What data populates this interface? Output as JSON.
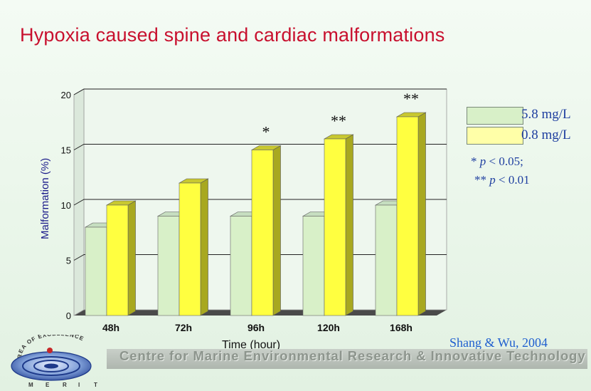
{
  "slide": {
    "title": "Hypoxia caused spine and cardiac malformations",
    "citation": "Shang & Wu, 2004",
    "footer": "Centre for Marine Environmental Research & Innovative Technology",
    "logo": {
      "ring_text": "AREA OF EXCELLENCE",
      "letters": [
        "M",
        "E",
        "R",
        "I",
        "T"
      ]
    }
  },
  "legend": {
    "items": [
      {
        "label": "5.8 mg/L",
        "color": "#d8f0c8"
      },
      {
        "label": "0.8 mg/L",
        "color": "#ffffa8"
      }
    ],
    "placement": "right"
  },
  "notes": {
    "line1_star": "*",
    "line1_p": "p",
    "line1_rest": " < 0.05;",
    "line2_star": "**",
    "line2_p": "p",
    "line2_rest": " < 0.01"
  },
  "chart_data": {
    "type": "bar",
    "title": "Hypoxia caused spine and cardiac malformations",
    "xlabel": "Time (hour)",
    "ylabel": "Malformation (%)",
    "categories": [
      "48h",
      "72h",
      "96h",
      "120h",
      "168h"
    ],
    "series": [
      {
        "name": "5.8 mg/L",
        "values": [
          8,
          9,
          9,
          9,
          10
        ],
        "color": "#d8f0c8"
      },
      {
        "name": "0.8 mg/L",
        "values": [
          10,
          12,
          15,
          16,
          18
        ],
        "color": "#ffff40"
      }
    ],
    "significance": [
      "",
      "",
      "*",
      "**",
      "**"
    ],
    "ylim": [
      0,
      20
    ],
    "yticks": [
      0,
      5,
      10,
      15,
      20
    ],
    "grid": true,
    "style": "3d"
  }
}
